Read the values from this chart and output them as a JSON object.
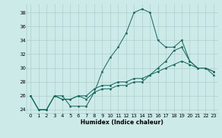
{
  "xlabel": "Humidex (Indice chaleur)",
  "xlim": [
    -0.5,
    23.5
  ],
  "ylim": [
    23.5,
    39.2
  ],
  "yticks": [
    24,
    26,
    28,
    30,
    32,
    34,
    36,
    38
  ],
  "xticks": [
    0,
    1,
    2,
    3,
    4,
    5,
    6,
    7,
    8,
    9,
    10,
    11,
    12,
    13,
    14,
    15,
    16,
    17,
    18,
    19,
    20,
    21,
    22,
    23
  ],
  "background_color": "#cceae7",
  "grid_color": "#aacccc",
  "line_color": "#1a6b60",
  "lines": [
    [
      26,
      24,
      24,
      26,
      26,
      24.5,
      24.5,
      24.5,
      26.5,
      29.5,
      31.5,
      33,
      35,
      38,
      38.5,
      38,
      34,
      33,
      33,
      34,
      31,
      30,
      30,
      29
    ],
    [
      26,
      24,
      24,
      26,
      25.5,
      25.5,
      26,
      25.5,
      26.5,
      27,
      27,
      27.5,
      27.5,
      28,
      28,
      29,
      30,
      31,
      32.5,
      33,
      31,
      30,
      30,
      29.5
    ],
    [
      26,
      24,
      24,
      26,
      25.5,
      25.5,
      26,
      26,
      27,
      27.5,
      27.5,
      28,
      28,
      28.5,
      28.5,
      29,
      29.5,
      30,
      30.5,
      31,
      30.5,
      30,
      30,
      29.5
    ]
  ]
}
